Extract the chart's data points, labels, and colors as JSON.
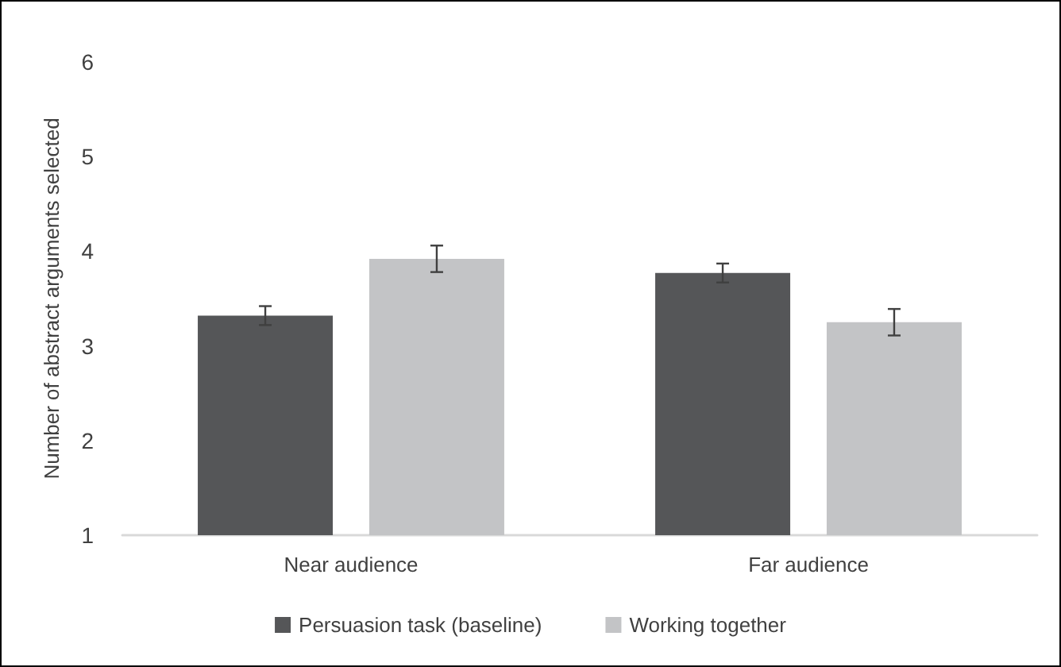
{
  "chart_data": {
    "type": "bar",
    "ylabel": "Number of abstract arguments selected",
    "categories": [
      "Near audience",
      "Far audience"
    ],
    "series": [
      {
        "name": "Persuasion task (baseline)",
        "color": "#555658",
        "values": [
          3.32,
          3.77
        ],
        "errors": [
          0.1,
          0.1
        ]
      },
      {
        "name": "Working together",
        "color": "#c3c4c6",
        "values": [
          3.92,
          3.25
        ],
        "errors": [
          0.14,
          0.14
        ]
      }
    ],
    "ylim": [
      1,
      6
    ],
    "yticks": [
      1,
      2,
      3,
      4,
      5,
      6
    ],
    "grid": false,
    "legend": "bottom"
  }
}
